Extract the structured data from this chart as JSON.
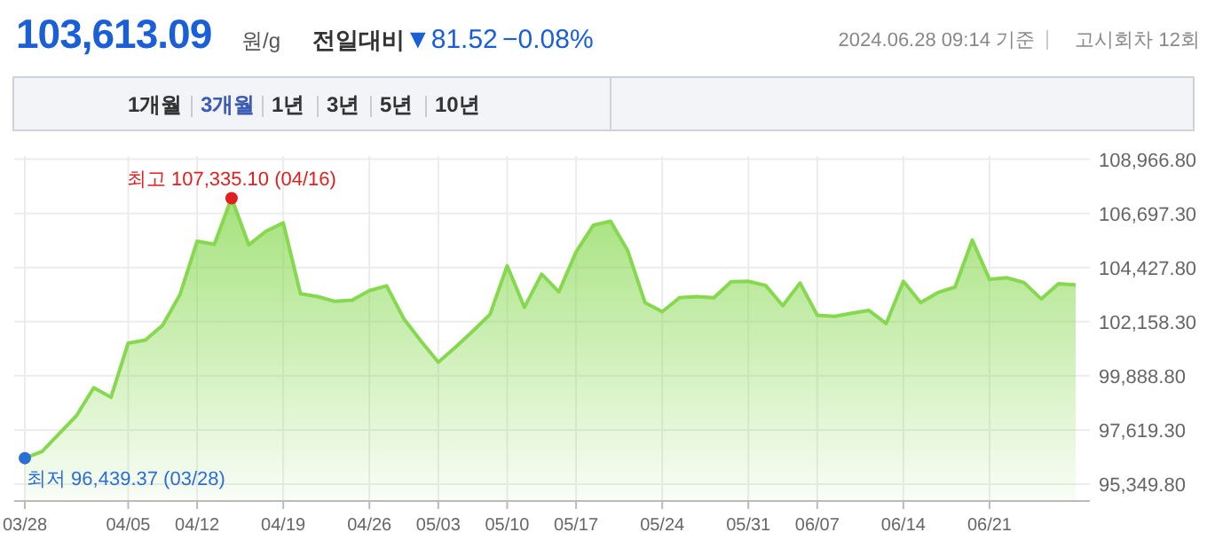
{
  "chart_data": {
    "type": "area",
    "categories": [
      "03/28",
      null,
      null,
      null,
      null,
      null,
      "04/05",
      null,
      null,
      null,
      "04/12",
      null,
      null,
      null,
      null,
      "04/19",
      null,
      null,
      null,
      null,
      "04/26",
      null,
      null,
      null,
      "05/03",
      null,
      null,
      null,
      "05/10",
      null,
      null,
      null,
      "05/17",
      null,
      null,
      null,
      null,
      "05/24",
      null,
      null,
      null,
      null,
      "05/31",
      null,
      null,
      null,
      "06/07",
      null,
      null,
      null,
      null,
      "06/14",
      null,
      null,
      null,
      null,
      "06/21",
      null,
      null,
      null,
      null,
      null
    ],
    "values": [
      96440,
      96720,
      97470,
      98220,
      99390,
      98990,
      101260,
      101390,
      102010,
      103280,
      105530,
      105400,
      107340,
      105380,
      105950,
      106300,
      103330,
      103210,
      103010,
      103060,
      103460,
      103660,
      102280,
      101340,
      100460,
      101090,
      101760,
      102460,
      104500,
      102760,
      104150,
      103410,
      105080,
      106200,
      106370,
      105130,
      102960,
      102580,
      103160,
      103210,
      103160,
      103830,
      103850,
      103680,
      102830,
      103780,
      102430,
      102380,
      102510,
      102630,
      102080,
      103850,
      102960,
      103380,
      103610,
      105580,
      103930,
      104000,
      103800,
      103110,
      103750,
      103700
    ],
    "color": "#86d84f",
    "ylim": [
      94680,
      109100
    ],
    "yticks": [
      {
        "value": 95349.8,
        "label": "95,349.80"
      },
      {
        "value": 97619.3,
        "label": "97,619.30"
      },
      {
        "value": 99888.8,
        "label": "99,888.80"
      },
      {
        "value": 102158.3,
        "label": "102,158.30"
      },
      {
        "value": 104427.8,
        "label": "104,427.80"
      },
      {
        "value": 106697.3,
        "label": "106,697.30"
      },
      {
        "value": 108966.8,
        "label": "108,966.80"
      }
    ],
    "grid": true,
    "annotations": [
      "103,613.09",
      "원/g",
      "전일대비",
      "▼81.52",
      "−0.08%",
      "2024.06.28 09:14 기준",
      "고시회차 12회",
      "1개월",
      "3개월",
      "1년",
      "3년",
      "5년",
      "10년",
      {
        "text": "최고 107,335.10 (04/16)",
        "y": 107335.1
      },
      {
        "text": "최저 96,439.37 (03/28)",
        "x": "03/28",
        "y": 96439.37
      }
    ]
  }
}
